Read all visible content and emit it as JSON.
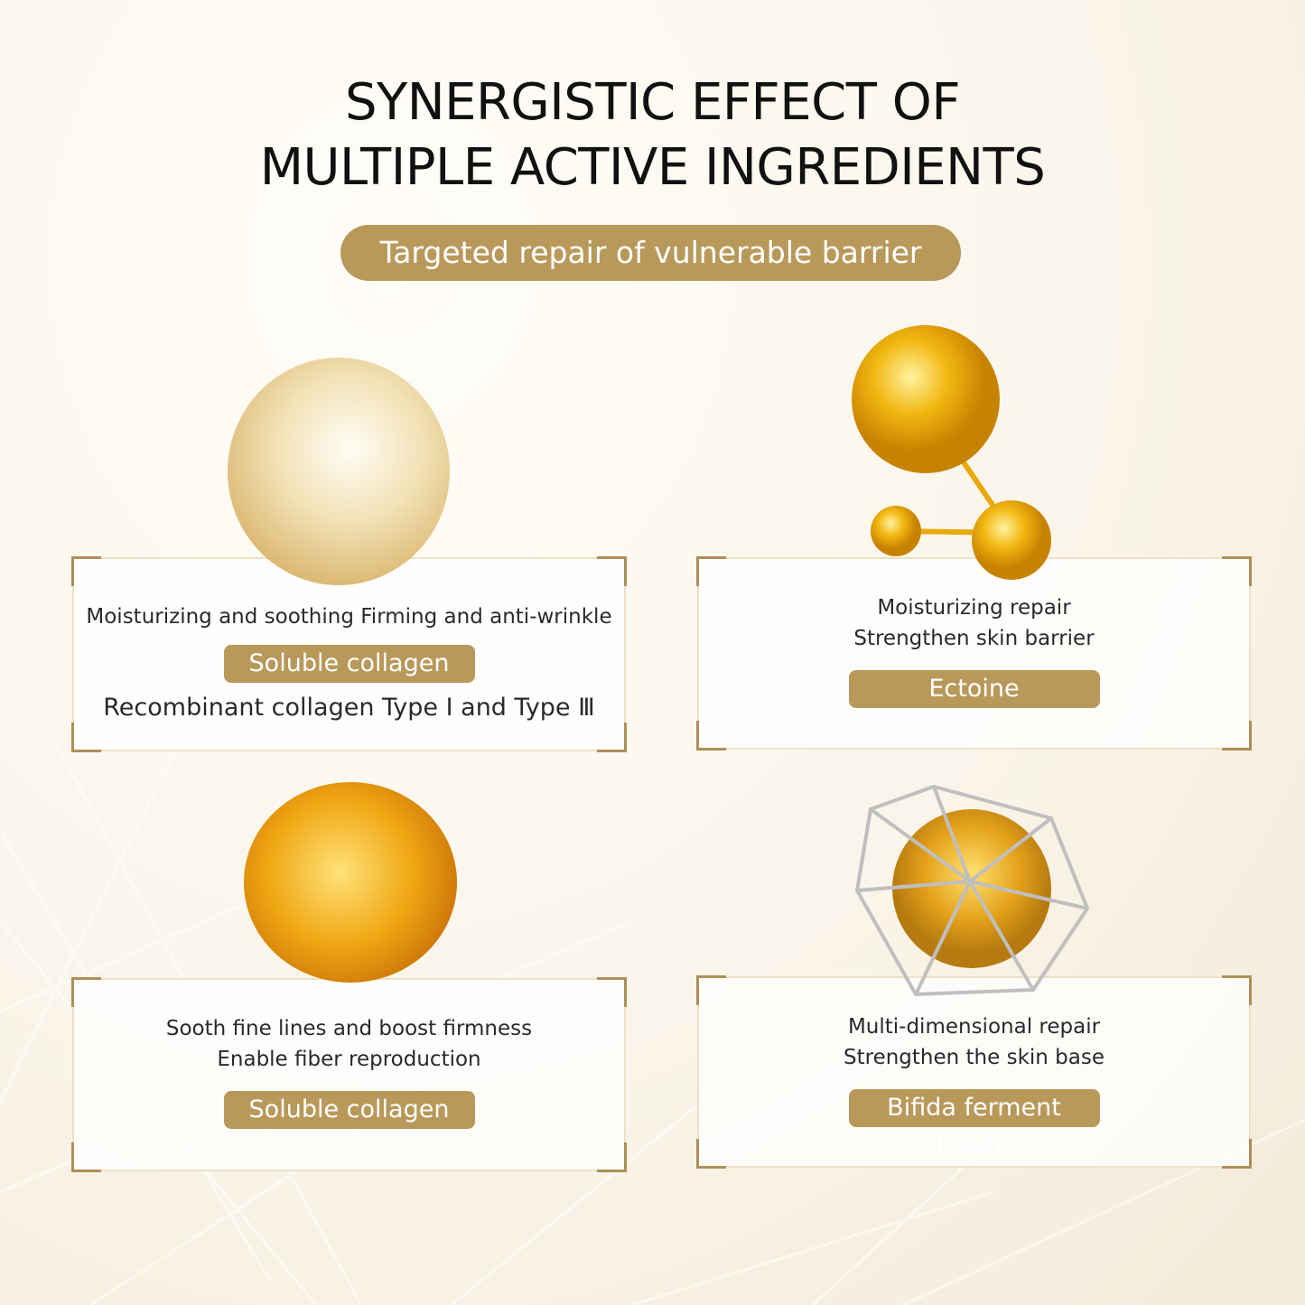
{
  "header": {
    "title_line1": "SYNERGISTIC EFFECT OF",
    "title_line2": "MULTIPLE ACTIVE INGREDIENTS",
    "banner": "Targeted repair of vulnerable barrier"
  },
  "colors": {
    "accent": "#b8995a",
    "corner": "#ad8f57",
    "text": "#111111"
  },
  "cards": [
    {
      "image": "clear-collagen-gel-sphere",
      "line1": "Moisturizing and soothing Firming and anti-wrinkle",
      "tag": "Soluble collagen",
      "line2": "Recombinant collagen Type Ⅰ and Type Ⅲ"
    },
    {
      "image": "golden-molecule",
      "line1": "Moisturizing repair",
      "line2": "Strengthen skin barrier",
      "tag": "Ectoine"
    },
    {
      "image": "amber-bubble-sphere",
      "line1": "Sooth fine lines and boost firmness",
      "line2": "Enable fiber reproduction",
      "tag": "Soluble collagen"
    },
    {
      "image": "caged-golden-sphere",
      "line1": "Multi-dimensional repair",
      "line2": "Strengthen the skin base",
      "tag": "Bifida ferment lysate"
    }
  ]
}
